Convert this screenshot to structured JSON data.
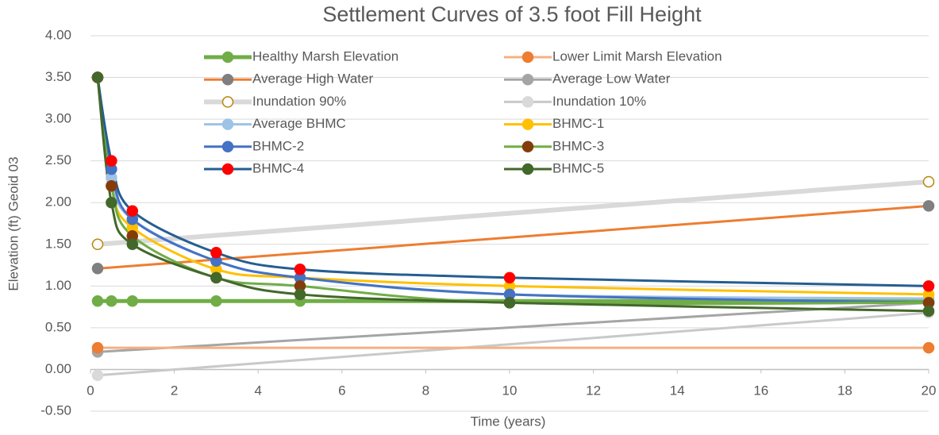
{
  "chart_data": {
    "type": "line",
    "title": "Settlement Curves of 3.5 foot Fill Height",
    "x_label": "Time (years)",
    "y_label": "Elevation (ft) Geoid 03",
    "xlim": [
      0,
      20
    ],
    "xticks": [
      0,
      2,
      4,
      6,
      8,
      10,
      12,
      14,
      16,
      18,
      20
    ],
    "ylim": [
      -0.5,
      4
    ],
    "yticks": [
      {
        "value": -0.5,
        "label": "-0.50"
      },
      {
        "value": 0,
        "label": "0.00"
      },
      {
        "value": 0.5,
        "label": "0.50"
      },
      {
        "value": 1,
        "label": "1.00"
      },
      {
        "value": 1.5,
        "label": "1.50"
      },
      {
        "value": 2,
        "label": "2.00"
      },
      {
        "value": 2.5,
        "label": "2.50"
      },
      {
        "value": 3,
        "label": "3.00"
      },
      {
        "value": 3.5,
        "label": "3.50"
      },
      {
        "value": 4,
        "label": "4.00"
      }
    ],
    "grid": true,
    "legend": "top",
    "series": [
      {
        "name": "Healthy Marsh Elevation",
        "color": "#70ad47",
        "marker_color": "#70ad47",
        "x": [
          0.17,
          0.5,
          1,
          3,
          5,
          20
        ],
        "values": [
          0.82,
          0.82,
          0.82,
          0.82,
          0.82,
          0.82
        ]
      },
      {
        "name": "Lower Limit Marsh Elevation",
        "color": "#f4b183",
        "marker_color": "#ed7d31",
        "x": [
          0.17,
          20
        ],
        "values": [
          0.26,
          0.26
        ]
      },
      {
        "name": "Average High Water",
        "color": "#ed7d31",
        "marker_color": "#7f7f7f",
        "x": [
          0.17,
          20
        ],
        "values": [
          1.21,
          1.96
        ]
      },
      {
        "name": "Average Low Water",
        "color": "#a5a5a5",
        "marker_color": "#a5a5a5",
        "x": [
          0.17,
          20
        ],
        "values": [
          0.21,
          0.8
        ]
      },
      {
        "name": "Inundation 90%",
        "color": "#d9d9d9",
        "marker_color": "#ffffff",
        "marker_edge": "#b8860b",
        "x": [
          0.17,
          20
        ],
        "values": [
          1.5,
          2.25
        ]
      },
      {
        "name": "Inundation 10%",
        "color": "#c9c9c9",
        "marker_color": "#d9d9d9",
        "x": [
          0.17,
          20
        ],
        "values": [
          -0.07,
          0.68
        ]
      },
      {
        "name": "Average BHMC",
        "color": "#9dc3e6",
        "marker_color": "#9dc3e6",
        "x": [
          0.17,
          0.5,
          1,
          3,
          5,
          10,
          20
        ],
        "values": [
          3.5,
          2.3,
          1.8,
          1.3,
          1.1,
          0.9,
          0.85
        ]
      },
      {
        "name": "BHMC-1",
        "color": "#ffc000",
        "marker_color": "#ffc000",
        "x": [
          0.17,
          0.5,
          1,
          3,
          5,
          10,
          20
        ],
        "values": [
          3.5,
          2.2,
          1.7,
          1.2,
          1.1,
          1.0,
          0.9
        ]
      },
      {
        "name": "BHMC-2",
        "color": "#4472c4",
        "marker_color": "#4472c4",
        "x": [
          0.17,
          0.5,
          1,
          3,
          5,
          10,
          20
        ],
        "values": [
          3.5,
          2.4,
          1.8,
          1.3,
          1.1,
          0.9,
          0.8
        ]
      },
      {
        "name": "BHMC-3",
        "color": "#70ad47",
        "marker_color": "#843c0c",
        "x": [
          0.17,
          0.5,
          1,
          3,
          5,
          10,
          20
        ],
        "values": [
          3.5,
          2.2,
          1.6,
          1.1,
          1.0,
          0.8,
          0.8
        ]
      },
      {
        "name": "BHMC-4",
        "color": "#255e91",
        "marker_color": "#ff0000",
        "x": [
          0.17,
          0.5,
          1,
          3,
          5,
          10,
          20
        ],
        "values": [
          3.5,
          2.5,
          1.9,
          1.4,
          1.2,
          1.1,
          1.0
        ]
      },
      {
        "name": "BHMC-5",
        "color": "#43682b",
        "marker_color": "#43682b",
        "x": [
          0.17,
          0.5,
          1,
          3,
          5,
          10,
          20
        ],
        "values": [
          3.5,
          2.0,
          1.5,
          1.1,
          0.9,
          0.8,
          0.7
        ]
      }
    ]
  }
}
